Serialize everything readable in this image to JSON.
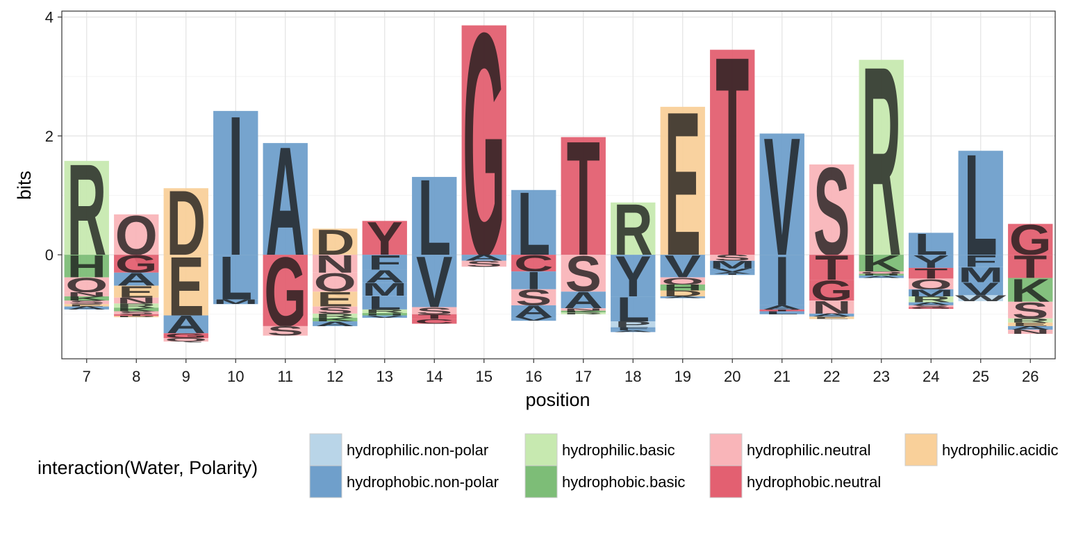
{
  "chart_data": {
    "type": "sequence-logo",
    "xlabel": "position",
    "ylabel": "bits",
    "ylim": [
      -1.75,
      4.1
    ],
    "xlim": [
      6.5,
      26.5
    ],
    "yticks": [
      0,
      2,
      4
    ],
    "grid": true,
    "legend": {
      "position": "bottom",
      "title": "interaction(Water, Polarity)",
      "entries": [
        {
          "key": "hnp",
          "label": "hydrophilic.non-polar"
        },
        {
          "key": "pnp",
          "label": "hydrophobic.non-polar"
        },
        {
          "key": "hb",
          "label": "hydrophilic.basic"
        },
        {
          "key": "pb",
          "label": "hydrophobic.basic"
        },
        {
          "key": "hn",
          "label": "hydrophilic.neutral"
        },
        {
          "key": "pn",
          "label": "hydrophobic.neutral"
        },
        {
          "key": "ha",
          "label": "hydrophilic.acidic"
        }
      ]
    },
    "colors": {
      "hnp": "#b9d5e8",
      "pnp": "#6f9fcb",
      "hb": "#c7e9b0",
      "pb": "#7dbd77",
      "hn": "#f9b5b9",
      "pn": "#e36071",
      "ha": "#f9d09a"
    },
    "positions": [
      {
        "pos": 7,
        "up": [
          [
            "R",
            "hb",
            1.58
          ]
        ],
        "down": [
          [
            "H",
            "pb",
            0.38
          ],
          [
            "Q",
            "hn",
            0.25
          ],
          [
            "N",
            "hn",
            0.07
          ],
          [
            "K",
            "pb",
            0.07
          ],
          [
            "S",
            "hn",
            0.06
          ],
          [
            "E",
            "ha",
            0.04
          ],
          [
            "A",
            "pnp",
            0.05
          ]
        ]
      },
      {
        "pos": 8,
        "up": [
          [
            "Q",
            "hn",
            0.68
          ]
        ],
        "down": [
          [
            "G",
            "pn",
            0.3
          ],
          [
            "A",
            "pnp",
            0.22
          ],
          [
            "E",
            "ha",
            0.2
          ],
          [
            "N",
            "hn",
            0.1
          ],
          [
            "R",
            "hb",
            0.07
          ],
          [
            "K",
            "pb",
            0.06
          ],
          [
            "S",
            "hn",
            0.05
          ],
          [
            "T",
            "pn",
            0.03
          ],
          [
            "D",
            "ha",
            0.02
          ]
        ]
      },
      {
        "pos": 9,
        "up": [
          [
            "D",
            "ha",
            1.12
          ]
        ],
        "down": [
          [
            "E",
            "ha",
            1.02
          ],
          [
            "A",
            "pnp",
            0.3
          ],
          [
            "G",
            "pn",
            0.08
          ],
          [
            "Q",
            "hn",
            0.06
          ]
        ]
      },
      {
        "pos": 10,
        "up": [
          [
            "I",
            "pnp",
            2.42
          ]
        ],
        "down": [
          [
            "L",
            "pnp",
            0.75
          ],
          [
            "M",
            "pnp",
            0.08
          ]
        ]
      },
      {
        "pos": 11,
        "up": [
          [
            "A",
            "pnp",
            1.88
          ]
        ],
        "down": [
          [
            "G",
            "pn",
            1.2
          ],
          [
            "S",
            "hn",
            0.16
          ]
        ]
      },
      {
        "pos": 12,
        "up": [
          [
            "D",
            "ha",
            0.44
          ]
        ],
        "down": [
          [
            "N",
            "hn",
            0.3
          ],
          [
            "Q",
            "hn",
            0.32
          ],
          [
            "E",
            "ha",
            0.25
          ],
          [
            "S",
            "hn",
            0.12
          ],
          [
            "R",
            "hb",
            0.07
          ],
          [
            "K",
            "pb",
            0.06
          ],
          [
            "A",
            "pnp",
            0.08
          ]
        ]
      },
      {
        "pos": 13,
        "up": [
          [
            "Y",
            "pn",
            0.57
          ]
        ],
        "down": [
          [
            "F",
            "pnp",
            0.25
          ],
          [
            "A",
            "pnp",
            0.22
          ],
          [
            "M",
            "pnp",
            0.22
          ],
          [
            "L",
            "pnp",
            0.23
          ],
          [
            "R",
            "hb",
            0.06
          ],
          [
            "H",
            "pb",
            0.04
          ],
          [
            "V",
            "pnp",
            0.04
          ]
        ]
      },
      {
        "pos": 14,
        "up": [
          [
            "L",
            "pnp",
            1.31
          ]
        ],
        "down": [
          [
            "V",
            "pnp",
            0.88
          ],
          [
            "S",
            "hn",
            0.12
          ],
          [
            "T",
            "pn",
            0.08
          ],
          [
            "C",
            "pn",
            0.08
          ]
        ]
      },
      {
        "pos": 15,
        "up": [
          [
            "G",
            "pn",
            3.86
          ]
        ],
        "down": [
          [
            "A",
            "pnp",
            0.1
          ],
          [
            "S",
            "hn",
            0.1
          ]
        ]
      },
      {
        "pos": 16,
        "up": [
          [
            "L",
            "pnp",
            1.09
          ]
        ],
        "down": [
          [
            "C",
            "pn",
            0.28
          ],
          [
            "I",
            "pnp",
            0.3
          ],
          [
            "S",
            "hn",
            0.27
          ],
          [
            "A",
            "pnp",
            0.2
          ],
          [
            "V",
            "pnp",
            0.06
          ]
        ]
      },
      {
        "pos": 17,
        "up": [
          [
            "T",
            "pn",
            1.98
          ]
        ],
        "down": [
          [
            "S",
            "hn",
            0.62
          ],
          [
            "A",
            "pnp",
            0.28
          ],
          [
            "N",
            "hn",
            0.04
          ],
          [
            "K",
            "pb",
            0.03
          ],
          [
            "R",
            "hb",
            0.03
          ]
        ]
      },
      {
        "pos": 18,
        "up": [
          [
            "R",
            "hb",
            0.88
          ]
        ],
        "down": [
          [
            "Y",
            "pnp",
            0.7
          ],
          [
            "L",
            "pnp",
            0.42
          ],
          [
            "P",
            "hnp",
            0.1
          ],
          [
            "F",
            "pnp",
            0.05
          ],
          [
            "A",
            "pnp",
            0.03
          ]
        ]
      },
      {
        "pos": 19,
        "up": [
          [
            "E",
            "ha",
            2.49
          ]
        ],
        "down": [
          [
            "V",
            "pnp",
            0.38
          ],
          [
            "Q",
            "hn",
            0.12
          ],
          [
            "H",
            "pb",
            0.1
          ],
          [
            "D",
            "ha",
            0.1
          ],
          [
            "A",
            "pnp",
            0.03
          ]
        ]
      },
      {
        "pos": 20,
        "up": [
          [
            "T",
            "pn",
            3.45
          ]
        ],
        "down": [
          [
            "S",
            "hn",
            0.1
          ],
          [
            "M",
            "pnp",
            0.13
          ],
          [
            "V",
            "pnp",
            0.06
          ],
          [
            "A",
            "pnp",
            0.03
          ],
          [
            "I",
            "pnp",
            0.02
          ]
        ]
      },
      {
        "pos": 21,
        "up": [
          [
            "V",
            "pnp",
            2.04
          ]
        ],
        "down": [
          [
            "I",
            "pnp",
            0.85
          ],
          [
            "A",
            "pnp",
            0.07
          ],
          [
            "T",
            "pn",
            0.03
          ],
          [
            "L",
            "pnp",
            0.05
          ]
        ]
      },
      {
        "pos": 22,
        "up": [
          [
            "S",
            "hn",
            1.52
          ]
        ],
        "down": [
          [
            "T",
            "pn",
            0.42
          ],
          [
            "G",
            "pn",
            0.35
          ],
          [
            "N",
            "hn",
            0.22
          ],
          [
            "A",
            "pnp",
            0.05
          ],
          [
            "E",
            "ha",
            0.04
          ]
        ]
      },
      {
        "pos": 23,
        "up": [
          [
            "R",
            "hb",
            3.28
          ]
        ],
        "down": [
          [
            "K",
            "pb",
            0.28
          ],
          [
            "Q",
            "hn",
            0.04
          ],
          [
            "H",
            "pb",
            0.03
          ],
          [
            "A",
            "pnp",
            0.04
          ]
        ]
      },
      {
        "pos": 24,
        "up": [
          [
            "L",
            "pnp",
            0.37
          ]
        ],
        "down": [
          [
            "Y",
            "pnp",
            0.22
          ],
          [
            "T",
            "pn",
            0.18
          ],
          [
            "Q",
            "hn",
            0.18
          ],
          [
            "M",
            "pnp",
            0.12
          ],
          [
            "R",
            "hb",
            0.1
          ],
          [
            "A",
            "pnp",
            0.05
          ],
          [
            "S",
            "hn",
            0.03
          ],
          [
            "G",
            "pn",
            0.03
          ]
        ]
      },
      {
        "pos": 25,
        "up": [
          [
            "L",
            "pnp",
            1.75
          ]
        ],
        "down": [
          [
            "F",
            "pnp",
            0.2
          ],
          [
            "M",
            "pnp",
            0.26
          ],
          [
            "V",
            "pnp",
            0.22
          ],
          [
            "W",
            "hnp",
            0.1
          ]
        ]
      },
      {
        "pos": 26,
        "up": [
          [
            "G",
            "pn",
            0.52
          ]
        ],
        "down": [
          [
            "T",
            "pn",
            0.39
          ],
          [
            "K",
            "pb",
            0.4
          ],
          [
            "S",
            "hn",
            0.28
          ],
          [
            "R",
            "hb",
            0.07
          ],
          [
            "E",
            "ha",
            0.06
          ],
          [
            "A",
            "pnp",
            0.06
          ],
          [
            "N",
            "hn",
            0.07
          ]
        ]
      }
    ]
  }
}
